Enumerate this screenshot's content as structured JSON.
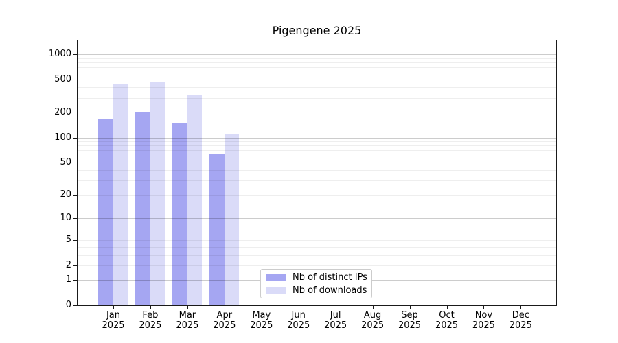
{
  "chart_data": {
    "type": "bar",
    "title": "Pigengene 2025",
    "categories": [
      "Jan 2025",
      "Feb 2025",
      "Mar 2025",
      "Apr 2025",
      "May 2025",
      "Jun 2025",
      "Jul 2025",
      "Aug 2025",
      "Sep 2025",
      "Oct 2025",
      "Nov 2025",
      "Dec 2025"
    ],
    "series": [
      {
        "name": "Nb of distinct IPs",
        "color": "#a5a6f2",
        "values": [
          165,
          205,
          152,
          64,
          null,
          null,
          null,
          null,
          null,
          null,
          null,
          null
        ]
      },
      {
        "name": "Nb of downloads",
        "color": "#dadbf8",
        "values": [
          432,
          458,
          330,
          110,
          null,
          null,
          null,
          null,
          null,
          null,
          null,
          null
        ]
      }
    ],
    "xlabel": "",
    "ylabel": "",
    "y_scale": "log10(value+1)",
    "y_tick_values": [
      1000,
      500,
      200,
      100,
      50,
      20,
      10,
      5,
      2,
      1,
      0
    ],
    "ylim": [
      0,
      1460
    ],
    "grid": true,
    "legend_position": "lower-center-inside",
    "colors": {
      "background": "#ffffff",
      "spine": "#1a1a1a",
      "major_grid": "#c9c9c9",
      "minor_grid": "#ededed",
      "legend_border": "#cccccc",
      "text": "#000000"
    }
  }
}
